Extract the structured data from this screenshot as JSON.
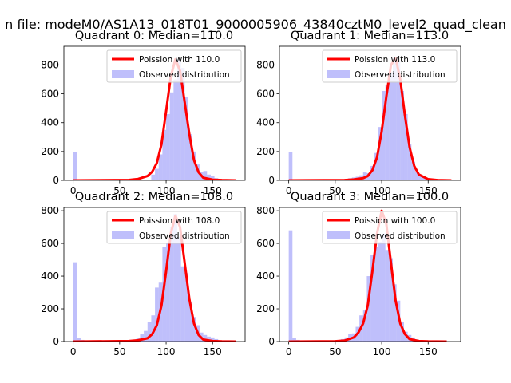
{
  "figure": {
    "suptitle": "n file: modeM0/AS1A13_018T01_9000005906_43840cztM0_level2_quad_clean"
  },
  "colors": {
    "poisson": "#ff0000",
    "observed": "#7f7ff7",
    "observed_alpha": 0.5
  },
  "chart_data": [
    {
      "type": "bar",
      "title": "Quadrant 0: Median=110.0",
      "legend": [
        "Poission with 110.0",
        "Observed distribution"
      ],
      "legend_position": "upper-right",
      "xlim": [
        -10,
        185
      ],
      "ylim": [
        0,
        930
      ],
      "xticks": [
        0,
        50,
        100,
        150
      ],
      "yticks": [
        0,
        200,
        400,
        600,
        800
      ],
      "median": 110.0,
      "poisson_x": [
        0,
        60,
        70,
        80,
        85,
        90,
        95,
        100,
        105,
        110,
        115,
        120,
        125,
        130,
        135,
        140,
        150,
        160,
        175
      ],
      "poisson_y": [
        0,
        3,
        10,
        30,
        60,
        120,
        250,
        480,
        720,
        840,
        760,
        540,
        320,
        140,
        55,
        18,
        5,
        2,
        0
      ],
      "hist": [
        {
          "x": 0,
          "y": 195
        },
        {
          "x": 4,
          "y": 8
        },
        {
          "x": 8,
          "y": 4
        },
        {
          "x": 84,
          "y": 40
        },
        {
          "x": 88,
          "y": 80
        },
        {
          "x": 92,
          "y": 180
        },
        {
          "x": 96,
          "y": 350
        },
        {
          "x": 100,
          "y": 460
        },
        {
          "x": 104,
          "y": 610
        },
        {
          "x": 108,
          "y": 700
        },
        {
          "x": 112,
          "y": 840
        },
        {
          "x": 116,
          "y": 780
        },
        {
          "x": 120,
          "y": 580
        },
        {
          "x": 124,
          "y": 320
        },
        {
          "x": 128,
          "y": 200
        },
        {
          "x": 132,
          "y": 110
        },
        {
          "x": 136,
          "y": 60
        },
        {
          "x": 140,
          "y": 65
        },
        {
          "x": 144,
          "y": 40
        },
        {
          "x": 148,
          "y": 30
        },
        {
          "x": 152,
          "y": 15
        }
      ]
    },
    {
      "type": "bar",
      "title": "Quadrant 1: Median=113.0",
      "legend": [
        "Poission with 113.0",
        "Observed distribution"
      ],
      "legend_position": "upper-right",
      "xlim": [
        -10,
        185
      ],
      "ylim": [
        0,
        930
      ],
      "xticks": [
        0,
        50,
        100,
        150
      ],
      "yticks": [
        0,
        200,
        400,
        600,
        800
      ],
      "median": 113.0,
      "poisson_x": [
        0,
        60,
        70,
        80,
        85,
        90,
        95,
        100,
        105,
        110,
        115,
        120,
        125,
        130,
        135,
        140,
        150,
        160,
        175
      ],
      "poisson_y": [
        0,
        2,
        6,
        15,
        30,
        70,
        160,
        340,
        580,
        800,
        850,
        700,
        450,
        230,
        100,
        40,
        8,
        2,
        0
      ],
      "hist": [
        {
          "x": 0,
          "y": 195
        },
        {
          "x": 4,
          "y": 5
        },
        {
          "x": 64,
          "y": 15
        },
        {
          "x": 68,
          "y": 20
        },
        {
          "x": 72,
          "y": 25
        },
        {
          "x": 76,
          "y": 35
        },
        {
          "x": 80,
          "y": 55
        },
        {
          "x": 84,
          "y": 50
        },
        {
          "x": 88,
          "y": 100
        },
        {
          "x": 92,
          "y": 190
        },
        {
          "x": 96,
          "y": 370
        },
        {
          "x": 100,
          "y": 620
        },
        {
          "x": 104,
          "y": 660
        },
        {
          "x": 108,
          "y": 750
        },
        {
          "x": 112,
          "y": 850
        },
        {
          "x": 116,
          "y": 830
        },
        {
          "x": 120,
          "y": 620
        },
        {
          "x": 124,
          "y": 460
        },
        {
          "x": 128,
          "y": 250
        },
        {
          "x": 132,
          "y": 130
        },
        {
          "x": 136,
          "y": 60
        },
        {
          "x": 140,
          "y": 40
        },
        {
          "x": 144,
          "y": 20
        },
        {
          "x": 148,
          "y": 10
        }
      ]
    },
    {
      "type": "bar",
      "title": "Quadrant 2: Median=108.0",
      "legend": [
        "Poission with 108.0",
        "Observed distribution"
      ],
      "legend_position": "upper-right",
      "xlim": [
        -10,
        185
      ],
      "ylim": [
        0,
        820
      ],
      "xticks": [
        0,
        50,
        100,
        150
      ],
      "yticks": [
        0,
        200,
        400,
        600,
        800
      ],
      "median": 108.0,
      "poisson_x": [
        0,
        60,
        70,
        80,
        85,
        90,
        95,
        100,
        105,
        110,
        115,
        120,
        125,
        130,
        135,
        140,
        150,
        160,
        175
      ],
      "poisson_y": [
        0,
        3,
        8,
        20,
        45,
        100,
        220,
        430,
        660,
        770,
        700,
        480,
        260,
        110,
        40,
        12,
        3,
        1,
        0
      ],
      "hist": [
        {
          "x": 0,
          "y": 485
        },
        {
          "x": 4,
          "y": 20
        },
        {
          "x": 8,
          "y": 10
        },
        {
          "x": 12,
          "y": 5
        },
        {
          "x": 16,
          "y": 3
        },
        {
          "x": 60,
          "y": 8
        },
        {
          "x": 64,
          "y": 12
        },
        {
          "x": 68,
          "y": 20
        },
        {
          "x": 72,
          "y": 45
        },
        {
          "x": 76,
          "y": 65
        },
        {
          "x": 80,
          "y": 120
        },
        {
          "x": 84,
          "y": 160
        },
        {
          "x": 88,
          "y": 330
        },
        {
          "x": 92,
          "y": 360
        },
        {
          "x": 96,
          "y": 580
        },
        {
          "x": 100,
          "y": 600
        },
        {
          "x": 104,
          "y": 700
        },
        {
          "x": 108,
          "y": 780
        },
        {
          "x": 112,
          "y": 640
        },
        {
          "x": 116,
          "y": 460
        },
        {
          "x": 120,
          "y": 420
        },
        {
          "x": 124,
          "y": 240
        },
        {
          "x": 128,
          "y": 150
        },
        {
          "x": 132,
          "y": 100
        },
        {
          "x": 136,
          "y": 55
        },
        {
          "x": 140,
          "y": 40
        },
        {
          "x": 144,
          "y": 30
        },
        {
          "x": 148,
          "y": 25
        },
        {
          "x": 152,
          "y": 15
        }
      ]
    },
    {
      "type": "bar",
      "title": "Quadrant 3: Median=100.0",
      "legend": [
        "Poission with 100.0",
        "Observed distribution"
      ],
      "legend_position": "upper-right",
      "xlim": [
        -10,
        185
      ],
      "ylim": [
        0,
        820
      ],
      "xticks": [
        0,
        50,
        100,
        150
      ],
      "yticks": [
        0,
        200,
        400,
        600,
        800
      ],
      "median": 100.0,
      "poisson_x": [
        0,
        50,
        60,
        70,
        75,
        80,
        85,
        90,
        95,
        100,
        105,
        110,
        115,
        120,
        125,
        130,
        140,
        150,
        170
      ],
      "poisson_y": [
        0,
        2,
        6,
        25,
        55,
        110,
        220,
        430,
        660,
        800,
        720,
        480,
        250,
        110,
        45,
        15,
        3,
        1,
        0
      ],
      "hist": [
        {
          "x": 0,
          "y": 680
        },
        {
          "x": 4,
          "y": 20
        },
        {
          "x": 8,
          "y": 10
        },
        {
          "x": 12,
          "y": 5
        },
        {
          "x": 56,
          "y": 15
        },
        {
          "x": 60,
          "y": 25
        },
        {
          "x": 64,
          "y": 45
        },
        {
          "x": 68,
          "y": 50
        },
        {
          "x": 72,
          "y": 90
        },
        {
          "x": 76,
          "y": 160
        },
        {
          "x": 80,
          "y": 190
        },
        {
          "x": 84,
          "y": 400
        },
        {
          "x": 88,
          "y": 530
        },
        {
          "x": 92,
          "y": 580
        },
        {
          "x": 96,
          "y": 610
        },
        {
          "x": 100,
          "y": 660
        },
        {
          "x": 104,
          "y": 560
        },
        {
          "x": 108,
          "y": 510
        },
        {
          "x": 112,
          "y": 350
        },
        {
          "x": 116,
          "y": 250
        },
        {
          "x": 120,
          "y": 120
        },
        {
          "x": 124,
          "y": 60
        },
        {
          "x": 128,
          "y": 40
        },
        {
          "x": 132,
          "y": 25
        },
        {
          "x": 136,
          "y": 12
        }
      ]
    }
  ]
}
